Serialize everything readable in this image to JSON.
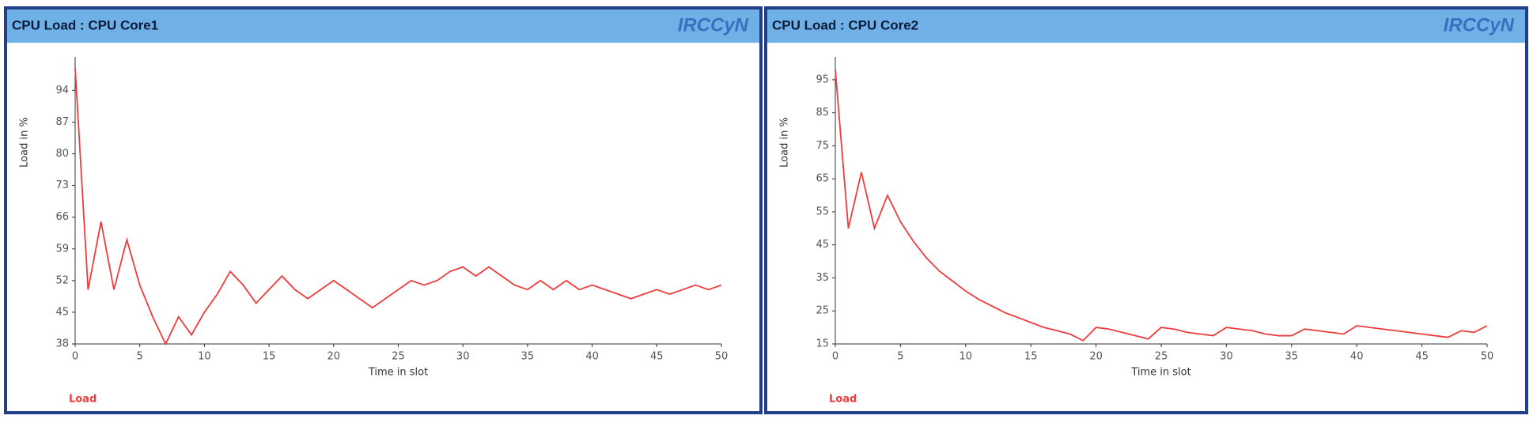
{
  "chart_data": [
    {
      "type": "line",
      "title": "CPU Load : CPU Core1",
      "logo": "IRCCyN",
      "x_label": "Time in slot",
      "y_label": "Load in %",
      "x": [
        0,
        1,
        2,
        3,
        4,
        5,
        6,
        7,
        8,
        9,
        10,
        11,
        12,
        13,
        14,
        15,
        16,
        17,
        18,
        19,
        20,
        21,
        22,
        23,
        24,
        25,
        26,
        27,
        28,
        29,
        30,
        31,
        32,
        33,
        34,
        35,
        36,
        37,
        38,
        39,
        40,
        41,
        42,
        43,
        44,
        45,
        46,
        47,
        48,
        49,
        50
      ],
      "series": [
        {
          "name": "Load",
          "color": "#ee3b3b",
          "values": [
            99,
            50,
            65,
            50,
            61,
            51,
            44,
            38,
            44,
            40,
            45,
            49,
            54,
            51,
            47,
            50,
            53,
            50,
            48,
            50,
            52,
            50,
            48,
            46,
            48,
            50,
            52,
            51,
            52,
            54,
            55,
            53,
            55,
            53,
            51,
            50,
            52,
            50,
            52,
            50,
            51,
            50,
            49,
            48,
            49,
            50,
            49,
            50,
            51,
            50,
            51
          ]
        }
      ],
      "xlim": [
        0,
        50
      ],
      "xticks": [
        0,
        5,
        10,
        15,
        20,
        25,
        30,
        35,
        40,
        45,
        50
      ],
      "ylim": [
        38,
        100
      ],
      "yticks": [
        38,
        45,
        52,
        59,
        66,
        73,
        80,
        87,
        94
      ]
    },
    {
      "type": "line",
      "title": "CPU Load : CPU Core2",
      "logo": "IRCCyN",
      "x_label": "Time in slot",
      "y_label": "Load in %",
      "x": [
        0,
        1,
        2,
        3,
        4,
        5,
        6,
        7,
        8,
        9,
        10,
        11,
        12,
        13,
        14,
        15,
        16,
        17,
        18,
        19,
        20,
        21,
        22,
        23,
        24,
        25,
        26,
        27,
        28,
        29,
        30,
        31,
        32,
        33,
        34,
        35,
        36,
        37,
        38,
        39,
        40,
        41,
        42,
        43,
        44,
        45,
        46,
        47,
        48,
        49,
        50
      ],
      "series": [
        {
          "name": "Load",
          "color": "#ee3b3b",
          "values": [
            98,
            50,
            67,
            50,
            60,
            52,
            46,
            41,
            37,
            34,
            31,
            28.5,
            26.5,
            24.5,
            23,
            21.5,
            20,
            19,
            18,
            16,
            20,
            19.5,
            18.5,
            17.5,
            16.5,
            20,
            19.5,
            18.5,
            18,
            17.5,
            20,
            19.5,
            19,
            18,
            17.5,
            17.5,
            19.5,
            19,
            18.5,
            18,
            20.5,
            20,
            19.5,
            19,
            18.5,
            18,
            17.5,
            17,
            19,
            18.5,
            20.5
          ]
        }
      ],
      "xlim": [
        0,
        50
      ],
      "xticks": [
        0,
        5,
        10,
        15,
        20,
        25,
        30,
        35,
        40,
        45,
        50
      ],
      "ylim": [
        15,
        100
      ],
      "yticks": [
        15,
        25,
        35,
        45,
        55,
        65,
        75,
        85,
        95
      ]
    }
  ]
}
